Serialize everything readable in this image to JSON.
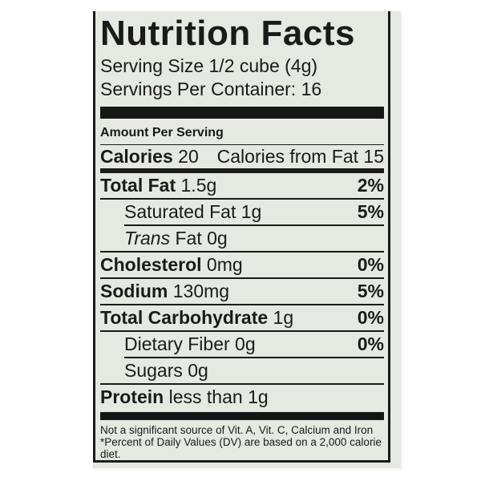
{
  "label": {
    "title": "Nutrition Facts",
    "serving_size": "Serving Size 1/2 cube (4g)",
    "servings_per_container": "Servings Per Container: 16",
    "amount_per_serving": "Amount Per Serving",
    "calories": {
      "label": "Calories",
      "value": "20"
    },
    "calories_from_fat": {
      "label": "Calories from Fat",
      "value": "15"
    },
    "rows": [
      {
        "name": "Total Fat",
        "amount": "1.5g",
        "dv": "2%",
        "style": "main",
        "divider": "thick"
      },
      {
        "name": "Saturated Fat",
        "amount": "1g",
        "dv": "5%",
        "style": "sub",
        "divider": "full"
      },
      {
        "name_italic": "Trans",
        "name": "Fat",
        "amount": "0g",
        "dv": "",
        "style": "sub",
        "divider": "indent"
      },
      {
        "name": "Cholesterol",
        "amount": "0mg",
        "dv": "0%",
        "style": "main",
        "divider": "full"
      },
      {
        "name": "Sodium",
        "amount": "130mg",
        "dv": "5%",
        "style": "main",
        "divider": "full"
      },
      {
        "name": "Total Carbohydrate",
        "amount": "1g",
        "dv": "0%",
        "style": "main",
        "divider": "full"
      },
      {
        "name": "Dietary Fiber",
        "amount": "0g",
        "dv": "0%",
        "style": "sub",
        "divider": "full"
      },
      {
        "name": "Sugars",
        "amount": "0g",
        "dv": "",
        "style": "sub",
        "divider": "indent"
      },
      {
        "name": "Protein",
        "amount": "less than 1g",
        "dv": "",
        "style": "main",
        "divider": "full"
      }
    ],
    "footnotes": [
      "Not a significant source of Vit. A, Vit. C, Calcium and Iron",
      "*Percent of Daily Values (DV) are based on a 2,000 calorie diet."
    ],
    "colors": {
      "paper": "#e5e9e1",
      "ink": "#1a1a1a",
      "page_background": "#ffffff"
    }
  }
}
